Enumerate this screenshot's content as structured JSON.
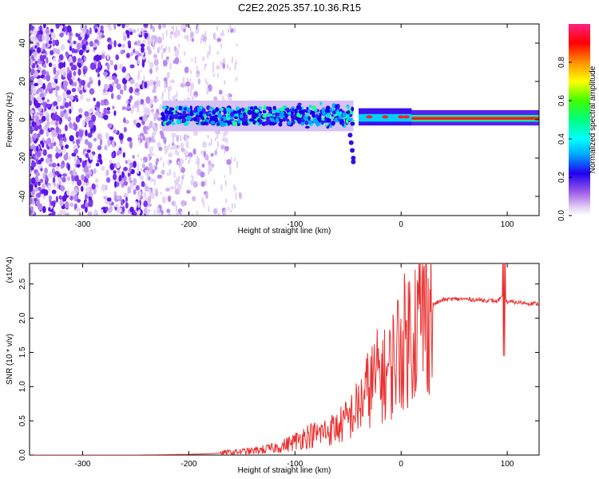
{
  "title": "C2E2.2025.357.10.36.R15",
  "chart_data": [
    {
      "type": "heatmap",
      "xlabel": "Height of straight line (km)",
      "ylabel": "Frequency (Hz)",
      "xlim": [
        -350,
        130
      ],
      "ylim": [
        -50,
        50
      ],
      "x_ticks": [
        -300,
        -200,
        -100,
        0,
        100
      ],
      "y_ticks": [
        -40,
        -20,
        0,
        20,
        40
      ],
      "colorbar": {
        "label": "Normalized spectral amplitude",
        "range": [
          0,
          1
        ],
        "ticks": [
          "0.0",
          "0.2",
          "0.4",
          "0.6",
          "0.8"
        ]
      },
      "features": [
        {
          "description_x": [
            -350,
            -160
          ],
          "kind": "scattered noise across all frequencies"
        },
        {
          "x": [
            -225,
            -45
          ],
          "center_hz": 2,
          "spread_hz": 6,
          "kind": "broadened tone"
        },
        {
          "x": [
            -45,
            -40
          ],
          "center_hz": -20,
          "kind": "tail"
        },
        {
          "x": [
            10,
            130
          ],
          "center_hz": 0,
          "kind": "narrow tone, amplitude ~0.9"
        }
      ]
    },
    {
      "type": "line",
      "xlabel": "Height of straight line (km)",
      "ylabel": "SNR (10 * v/v)",
      "y_multiplier": "(x10^4)",
      "xlim": [
        -350,
        130
      ],
      "ylim": [
        0,
        2.8
      ],
      "x_ticks": [
        -300,
        -200,
        -100,
        0,
        100
      ],
      "y_ticks": [
        "0.0",
        "0.5",
        "1.0",
        "1.5",
        "2.0",
        "2.5"
      ],
      "series": [
        {
          "color": "#e8302f",
          "x": [
            -350,
            -300,
            -250,
            -200,
            -180,
            -160,
            -150,
            -140,
            -130,
            -120,
            -110,
            -100,
            -90,
            -80,
            -70,
            -60,
            -50,
            -40,
            -30,
            -20,
            -15,
            -10,
            -5,
            0,
            5,
            10,
            20,
            30,
            40,
            50,
            60,
            70,
            80,
            90,
            95,
            100,
            110,
            120,
            130
          ],
          "y": [
            0.0,
            0.0,
            0.0,
            0.01,
            0.02,
            0.04,
            0.05,
            0.06,
            0.08,
            0.1,
            0.14,
            0.2,
            0.28,
            0.3,
            0.35,
            0.4,
            0.52,
            0.7,
            1.0,
            1.2,
            1.15,
            1.25,
            1.5,
            1.6,
            1.7,
            1.85,
            2.05,
            2.2,
            2.27,
            2.28,
            2.28,
            2.27,
            2.26,
            2.25,
            2.3,
            2.24,
            2.23,
            2.22,
            2.21
          ]
        }
      ]
    }
  ]
}
